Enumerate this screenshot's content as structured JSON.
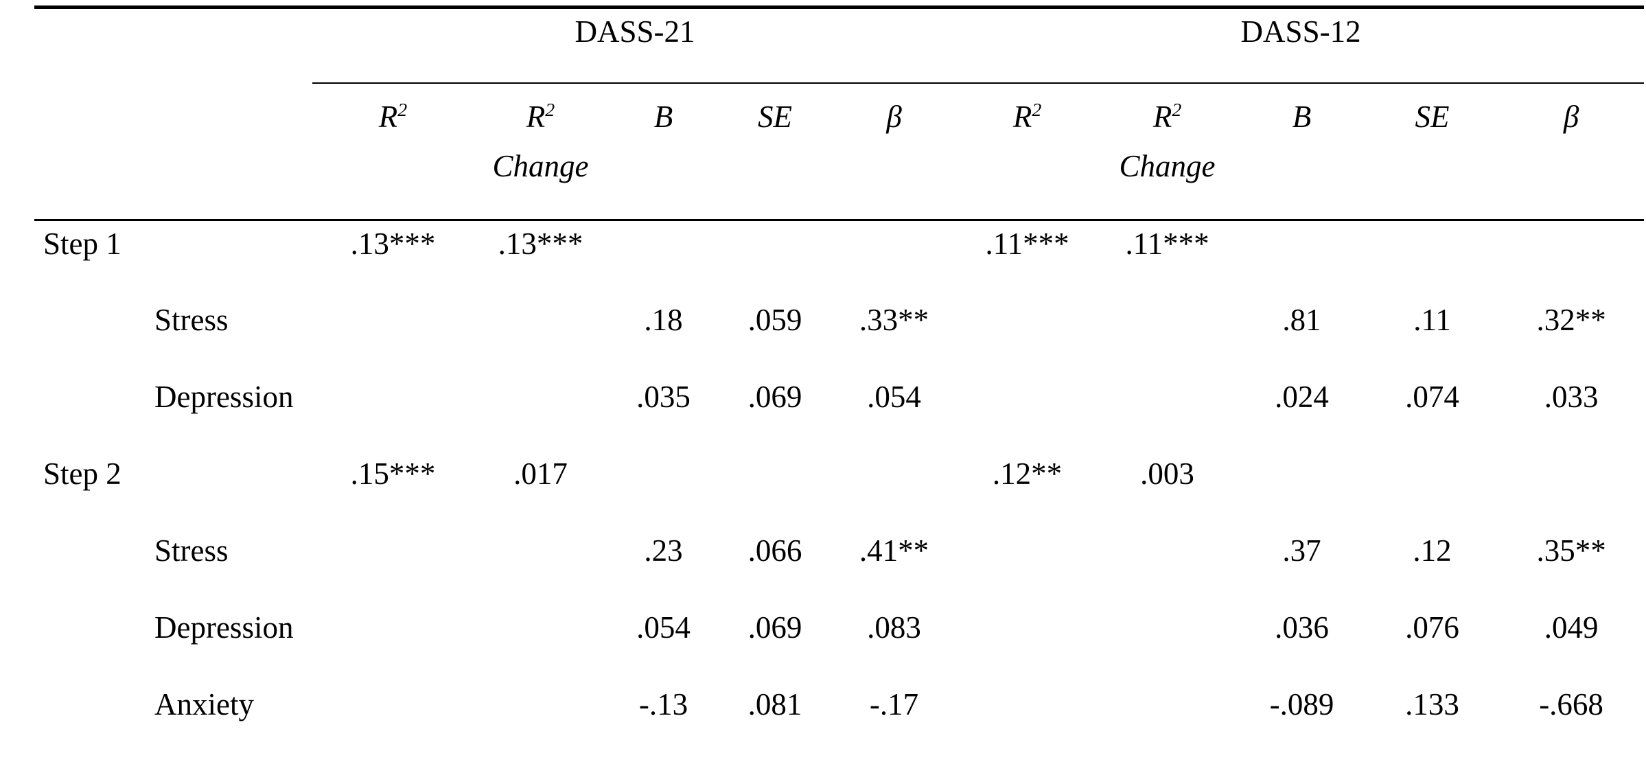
{
  "table": {
    "groups": [
      {
        "label": "DASS-21"
      },
      {
        "label": "DASS-12"
      }
    ],
    "columns": [
      "R²",
      "R² Change",
      "B",
      "SE",
      "β",
      "R²",
      "R² Change",
      "B",
      "SE",
      "β"
    ],
    "rows": [
      {
        "label": "Step 1",
        "indent": false,
        "values": [
          ".13***",
          ".13***",
          "",
          "",
          "",
          ".11***",
          ".11***",
          "",
          "",
          ""
        ]
      },
      {
        "label": "Stress",
        "indent": true,
        "values": [
          "",
          "",
          ".18",
          ".059",
          ".33**",
          "",
          "",
          ".81",
          ".11",
          ".32**"
        ]
      },
      {
        "label": "Depression",
        "indent": true,
        "values": [
          "",
          "",
          ".035",
          ".069",
          ".054",
          "",
          "",
          ".024",
          ".074",
          ".033"
        ]
      },
      {
        "label": "Step 2",
        "indent": false,
        "values": [
          ".15***",
          ".017",
          "",
          "",
          "",
          ".12**",
          ".003",
          "",
          "",
          ""
        ]
      },
      {
        "label": "Stress",
        "indent": true,
        "values": [
          "",
          "",
          ".23",
          ".066",
          ".41**",
          "",
          "",
          ".37",
          ".12",
          ".35**"
        ]
      },
      {
        "label": "Depression",
        "indent": true,
        "values": [
          "",
          "",
          ".054",
          ".069",
          ".083",
          "",
          "",
          ".036",
          ".076",
          ".049"
        ]
      },
      {
        "label": "Anxiety",
        "indent": true,
        "values": [
          "",
          "",
          "-.13",
          ".081",
          "-.17",
          "",
          "",
          "-.089",
          ".133",
          "-.668"
        ]
      }
    ]
  },
  "colors": {
    "text": "#000000",
    "background": "#ffffff",
    "rule": "#000000"
  }
}
